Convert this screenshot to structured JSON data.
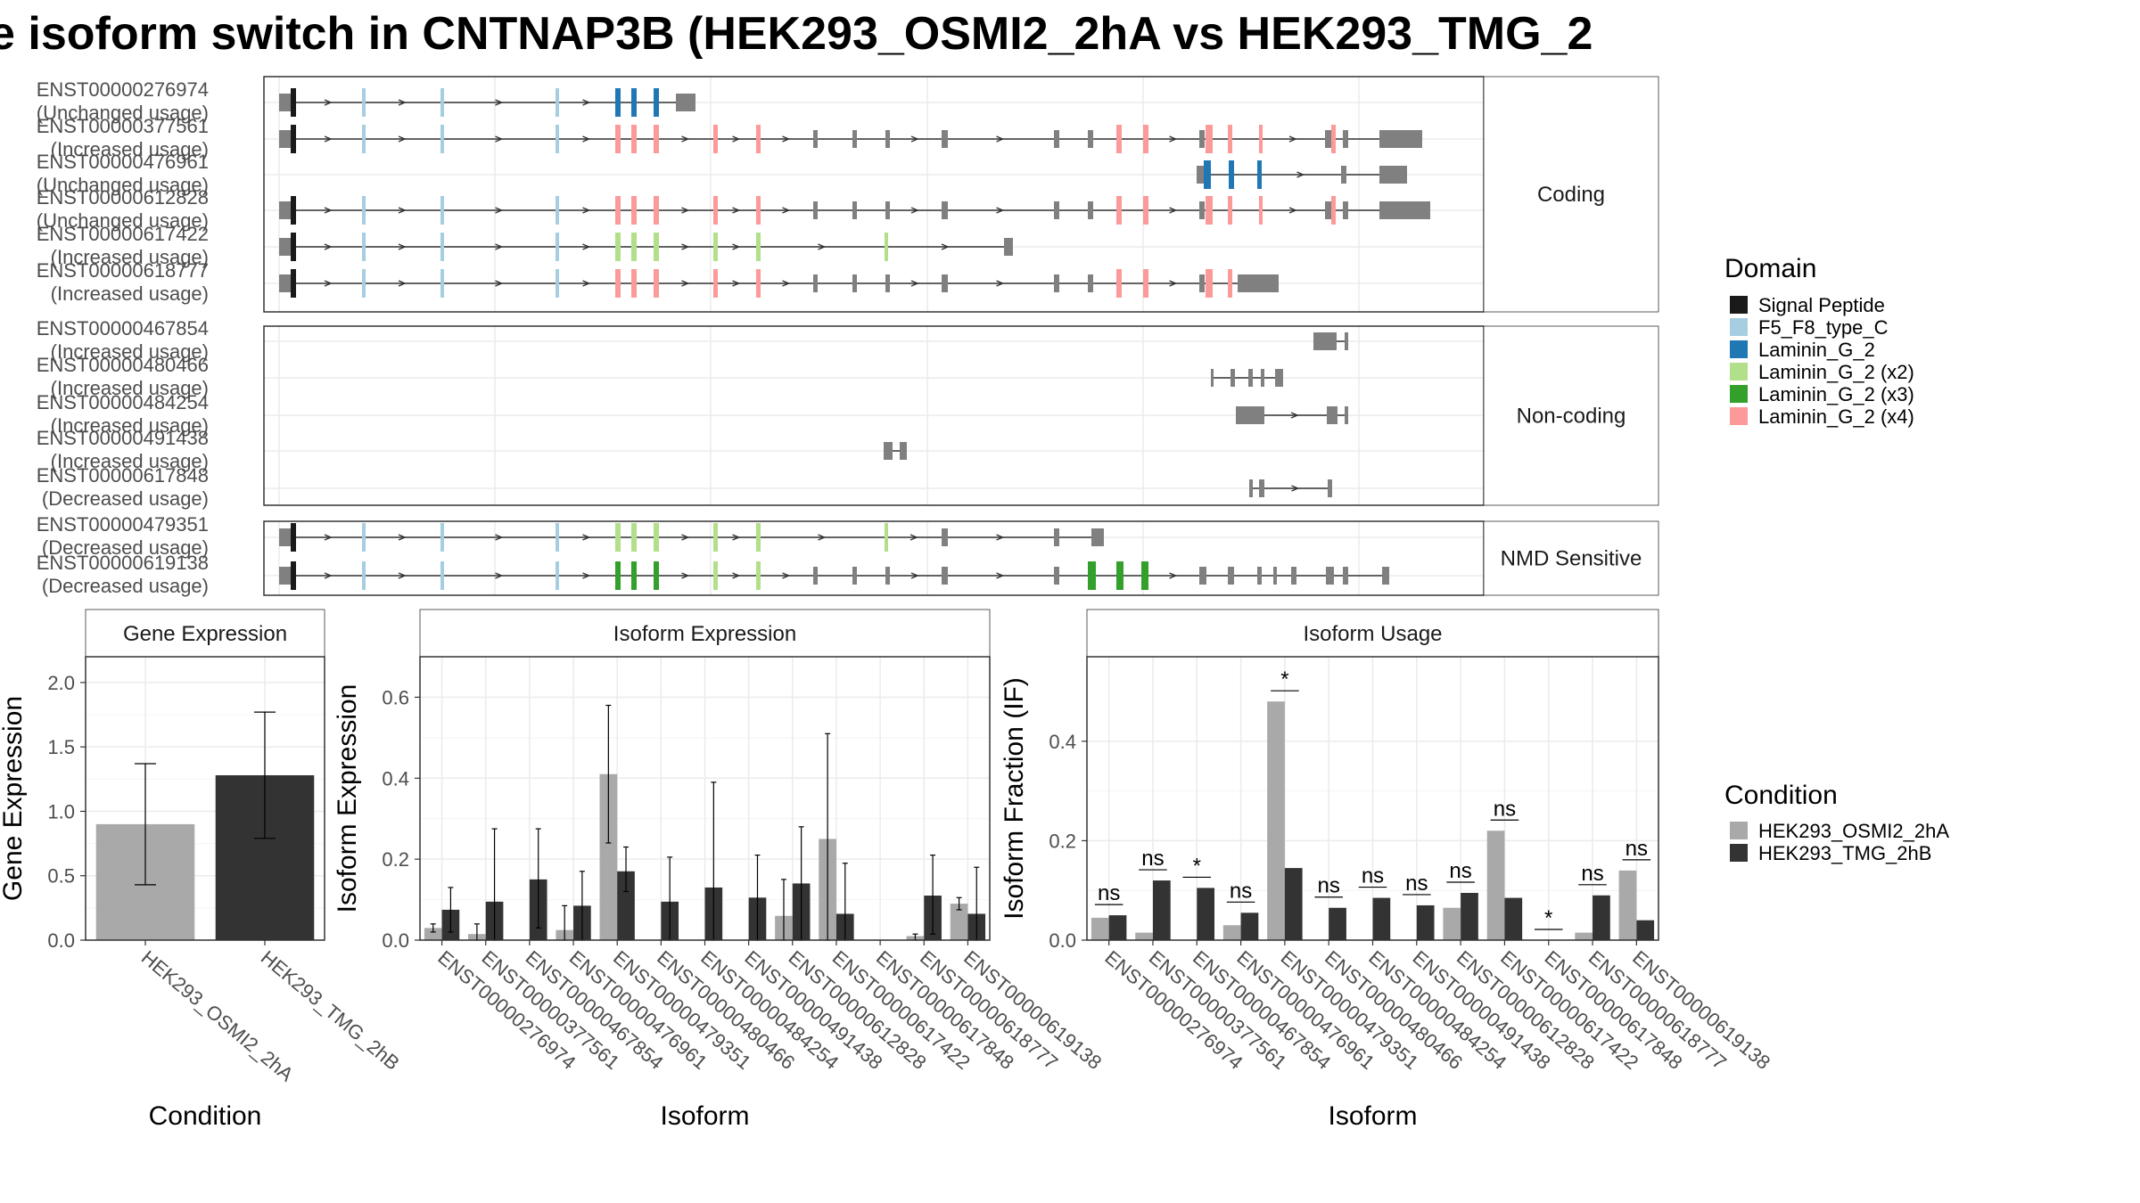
{
  "title": "e isoform switch in CNTNAP3B (HEK293_OSMI2_2hA vs HEK293_TMG_2",
  "structure": {
    "facets": [
      {
        "label": "Coding",
        "rows": [
          {
            "id": "ENST00000276974",
            "usage": "(Unchanged usage)"
          },
          {
            "id": "ENST00000377561",
            "usage": "(Increased usage)"
          },
          {
            "id": "ENST00000476961",
            "usage": "(Unchanged usage)"
          },
          {
            "id": "ENST00000612828",
            "usage": "(Unchanged usage)"
          },
          {
            "id": "ENST00000617422",
            "usage": "(Increased usage)"
          },
          {
            "id": "ENST00000618777",
            "usage": "(Increased usage)"
          }
        ]
      },
      {
        "label": "Non-coding",
        "rows": [
          {
            "id": "ENST00000467854",
            "usage": "(Increased usage)"
          },
          {
            "id": "ENST00000480466",
            "usage": "(Increased usage)"
          },
          {
            "id": "ENST00000484254",
            "usage": "(Increased usage)"
          },
          {
            "id": "ENST00000491438",
            "usage": "(Increased usage)"
          },
          {
            "id": "ENST00000617848",
            "usage": "(Decreased usage)"
          }
        ]
      },
      {
        "label": "NMD Sensitive",
        "rows": [
          {
            "id": "ENST00000479351",
            "usage": "(Decreased usage)"
          },
          {
            "id": "ENST00000619138",
            "usage": "(Decreased usage)"
          }
        ]
      }
    ],
    "domain_legend": {
      "title": "Domain",
      "items": [
        {
          "label": "Signal Peptide",
          "color": "#1a1a1a"
        },
        {
          "label": "F5_F8_type_C",
          "color": "#a6cee3"
        },
        {
          "label": "Laminin_G_2",
          "color": "#1f78b4"
        },
        {
          "label": "Laminin_G_2 (x2)",
          "color": "#b2df8a"
        },
        {
          "label": "Laminin_G_2 (x3)",
          "color": "#33a02c"
        },
        {
          "label": "Laminin_G_2 (x4)",
          "color": "#fb9a99"
        }
      ]
    }
  },
  "chart_data": [
    {
      "type": "bar",
      "title": "Gene Expression",
      "xlabel": "Condition",
      "ylabel": "Gene Expression",
      "ylim": [
        0,
        2.2
      ],
      "yticks": [
        0.0,
        0.5,
        1.0,
        1.5,
        2.0
      ],
      "categories": [
        "HEK293_OSMI2_2hA",
        "HEK293_TMG_2hB"
      ],
      "values": [
        0.9,
        1.28
      ],
      "err_low": [
        0.43,
        0.79
      ],
      "err_high": [
        1.37,
        1.77
      ],
      "colors": [
        "#a9a9a9",
        "#333333"
      ],
      "grid": true
    },
    {
      "type": "bar",
      "title": "Isoform Expression",
      "xlabel": "Isoform",
      "ylabel": "Isoform Expression",
      "ylim": [
        0,
        0.7
      ],
      "yticks": [
        0.0,
        0.2,
        0.4,
        0.6
      ],
      "categories": [
        "ENST00000276974",
        "ENST00000377561",
        "ENST00000467854",
        "ENST00000476961",
        "ENST00000479351",
        "ENST00000480466",
        "ENST00000484254",
        "ENST00000491438",
        "ENST00000612828",
        "ENST00000617422",
        "ENST00000617848",
        "ENST00000618777",
        "ENST00000619138"
      ],
      "series": [
        {
          "name": "HEK293_OSMI2_2hA",
          "color": "#a9a9a9",
          "values": [
            0.03,
            0.015,
            0.0,
            0.025,
            0.41,
            0.0,
            0.0,
            0.0,
            0.06,
            0.25,
            0.0,
            0.01,
            0.09
          ],
          "err_low": [
            0.02,
            0.0,
            0.0,
            0.0,
            0.24,
            0.0,
            0.0,
            0.0,
            0.0,
            0.0,
            0.0,
            0.0,
            0.075
          ],
          "err_high": [
            0.04,
            0.04,
            0.0,
            0.085,
            0.58,
            0.0,
            0.0,
            0.0,
            0.15,
            0.51,
            0.0,
            0.015,
            0.105
          ]
        },
        {
          "name": "HEK293_TMG_2hB",
          "color": "#333333",
          "values": [
            0.075,
            0.095,
            0.15,
            0.085,
            0.17,
            0.095,
            0.13,
            0.105,
            0.14,
            0.065,
            0.0,
            0.11,
            0.065
          ],
          "err_low": [
            0.02,
            0.0,
            0.03,
            0.0,
            0.12,
            0.0,
            0.0,
            0.0,
            0.0,
            0.0,
            0.0,
            0.015,
            0.0
          ],
          "err_high": [
            0.13,
            0.275,
            0.275,
            0.17,
            0.23,
            0.205,
            0.39,
            0.21,
            0.28,
            0.19,
            0.0,
            0.21,
            0.18
          ]
        }
      ],
      "grid": true
    },
    {
      "type": "bar",
      "title": "Isoform Usage",
      "xlabel": "Isoform",
      "ylabel": "Isoform Fraction (IF)",
      "ylim": [
        0,
        0.57
      ],
      "yticks": [
        0.0,
        0.2,
        0.4
      ],
      "categories": [
        "ENST00000276974",
        "ENST00000377561",
        "ENST00000467854",
        "ENST00000476961",
        "ENST00000479351",
        "ENST00000480466",
        "ENST00000484254",
        "ENST00000491438",
        "ENST00000612828",
        "ENST00000617422",
        "ENST00000617848",
        "ENST00000618777",
        "ENST00000619138"
      ],
      "series": [
        {
          "name": "HEK293_OSMI2_2hA",
          "color": "#a9a9a9",
          "values": [
            0.045,
            0.015,
            0.0,
            0.03,
            0.48,
            0.0,
            0.0,
            0.0,
            0.065,
            0.22,
            0.0,
            0.015,
            0.14
          ]
        },
        {
          "name": "HEK293_TMG_2hB",
          "color": "#333333",
          "values": [
            0.05,
            0.12,
            0.105,
            0.055,
            0.145,
            0.065,
            0.085,
            0.07,
            0.095,
            0.085,
            0.0,
            0.09,
            0.04
          ]
        }
      ],
      "significance": [
        "ns",
        "ns",
        "*",
        "ns",
        "*",
        "ns",
        "ns",
        "ns",
        "ns",
        "ns",
        "*",
        "ns",
        "ns"
      ],
      "grid": true
    }
  ],
  "condition_legend": {
    "title": "Condition",
    "items": [
      {
        "label": "HEK293_OSMI2_2hA",
        "color": "#a9a9a9"
      },
      {
        "label": "HEK293_TMG_2hB",
        "color": "#333333"
      }
    ]
  }
}
